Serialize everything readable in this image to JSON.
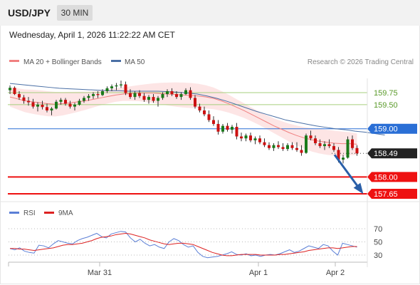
{
  "header": {
    "pair": "USD/JPY",
    "timeframe": "30 MIN"
  },
  "datetime": "Wednesday, April 1, 2026 11:22:22 AM CET",
  "legend": {
    "ma20": "MA 20 + Bollinger Bands",
    "ma50": "MA 50",
    "credit": "Research © 2026 Trading Central"
  },
  "rsi_legend": {
    "rsi": "RSI",
    "ma": "9MA"
  },
  "colors": {
    "up": "#1a7a1a",
    "down": "#cc1111",
    "ma20": "#f08080",
    "ma50": "#4a6fa5",
    "band": "#fde0e0",
    "resistance": "#2a6fd6",
    "support": "#ee1111",
    "green_level": "#a6cf7e",
    "arrow": "#2a5fa8",
    "rsi": "#5b7fd6",
    "rsi_ma": "#dd2222"
  },
  "chart_data": [
    {
      "type": "line",
      "title": "USD/JPY",
      "xlabel": "",
      "ylabel": "",
      "x_ticks": [
        "Mar 31",
        "Apr 1",
        "Apr 2"
      ],
      "ylim": [
        157.5,
        160.1
      ],
      "levels": [
        {
          "value": 159.75,
          "label": "159.75",
          "kind": "target"
        },
        {
          "value": 159.5,
          "label": "159.50",
          "kind": "target"
        },
        {
          "value": 159.0,
          "label": "159.00",
          "kind": "resistance"
        },
        {
          "value": 158.49,
          "label": "158.49",
          "kind": "last"
        },
        {
          "value": 158.0,
          "label": "158.00",
          "kind": "support"
        },
        {
          "value": 157.65,
          "label": "157.65",
          "kind": "support"
        }
      ],
      "candles": [
        [
          159.8,
          159.9,
          159.72,
          159.85
        ],
        [
          159.85,
          159.88,
          159.7,
          159.72
        ],
        [
          159.72,
          159.78,
          159.6,
          159.65
        ],
        [
          159.65,
          159.7,
          159.52,
          159.58
        ],
        [
          159.58,
          159.66,
          159.48,
          159.55
        ],
        [
          159.55,
          159.62,
          159.42,
          159.46
        ],
        [
          159.46,
          159.55,
          159.36,
          159.5
        ],
        [
          159.5,
          159.58,
          159.4,
          159.45
        ],
        [
          159.45,
          159.52,
          159.34,
          159.38
        ],
        [
          159.38,
          159.45,
          159.28,
          159.42
        ],
        [
          159.42,
          159.6,
          159.4,
          159.56
        ],
        [
          159.56,
          159.64,
          159.5,
          159.6
        ],
        [
          159.6,
          159.64,
          159.48,
          159.52
        ],
        [
          159.52,
          159.58,
          159.42,
          159.46
        ],
        [
          159.46,
          159.54,
          159.38,
          159.5
        ],
        [
          159.5,
          159.62,
          159.48,
          159.58
        ],
        [
          159.58,
          159.68,
          159.54,
          159.64
        ],
        [
          159.64,
          159.72,
          159.58,
          159.68
        ],
        [
          159.68,
          159.76,
          159.62,
          159.72
        ],
        [
          159.72,
          159.78,
          159.64,
          159.7
        ],
        [
          159.7,
          159.82,
          159.68,
          159.78
        ],
        [
          159.78,
          159.88,
          159.74,
          159.84
        ],
        [
          159.84,
          159.92,
          159.78,
          159.88
        ],
        [
          159.88,
          159.95,
          159.8,
          159.9
        ],
        [
          159.9,
          160.0,
          159.85,
          159.92
        ],
        [
          159.92,
          159.98,
          159.7,
          159.74
        ],
        [
          159.74,
          159.82,
          159.62,
          159.66
        ],
        [
          159.66,
          159.78,
          159.6,
          159.74
        ],
        [
          159.74,
          159.8,
          159.64,
          159.68
        ],
        [
          159.68,
          159.74,
          159.56,
          159.6
        ],
        [
          159.6,
          159.7,
          159.52,
          159.66
        ],
        [
          159.66,
          159.72,
          159.54,
          159.58
        ],
        [
          159.58,
          159.68,
          159.46,
          159.64
        ],
        [
          159.64,
          159.76,
          159.6,
          159.72
        ],
        [
          159.72,
          159.82,
          159.66,
          159.78
        ],
        [
          159.78,
          159.84,
          159.68,
          159.72
        ],
        [
          159.72,
          159.78,
          159.62,
          159.66
        ],
        [
          159.66,
          159.76,
          159.6,
          159.72
        ],
        [
          159.72,
          159.84,
          159.7,
          159.8
        ],
        [
          159.8,
          159.86,
          159.6,
          159.64
        ],
        [
          159.64,
          159.7,
          159.42,
          159.46
        ],
        [
          159.46,
          159.52,
          159.34,
          159.38
        ],
        [
          159.38,
          159.46,
          159.26,
          159.3
        ],
        [
          159.3,
          159.38,
          159.14,
          159.18
        ],
        [
          159.18,
          159.26,
          159.06,
          159.1
        ],
        [
          159.1,
          159.18,
          158.88,
          158.94
        ],
        [
          158.94,
          159.1,
          158.9,
          159.06
        ],
        [
          159.06,
          159.12,
          158.94,
          158.98
        ],
        [
          158.98,
          159.08,
          158.9,
          159.04
        ],
        [
          159.04,
          159.12,
          158.78,
          158.84
        ],
        [
          158.84,
          158.92,
          158.74,
          158.8
        ],
        [
          158.8,
          158.9,
          158.74,
          158.86
        ],
        [
          158.86,
          158.92,
          158.72,
          158.76
        ],
        [
          158.76,
          158.84,
          158.68,
          158.8
        ],
        [
          158.8,
          158.86,
          158.68,
          158.72
        ],
        [
          158.72,
          158.8,
          158.62,
          158.66
        ],
        [
          158.66,
          158.72,
          158.56,
          158.6
        ],
        [
          158.6,
          158.7,
          158.54,
          158.66
        ],
        [
          158.66,
          158.74,
          158.58,
          158.62
        ],
        [
          158.62,
          158.7,
          158.54,
          158.58
        ],
        [
          158.58,
          158.7,
          158.54,
          158.66
        ],
        [
          158.66,
          158.72,
          158.56,
          158.6
        ],
        [
          158.6,
          158.72,
          158.52,
          158.56
        ],
        [
          158.56,
          158.66,
          158.44,
          158.5
        ],
        [
          158.5,
          158.9,
          158.48,
          158.86
        ],
        [
          158.86,
          158.96,
          158.76,
          158.8
        ],
        [
          158.8,
          158.86,
          158.66,
          158.7
        ],
        [
          158.7,
          158.78,
          158.6,
          158.64
        ],
        [
          158.64,
          158.74,
          158.56,
          158.68
        ],
        [
          158.68,
          158.78,
          158.6,
          158.64
        ],
        [
          158.64,
          158.7,
          158.52,
          158.56
        ],
        [
          158.56,
          158.62,
          158.3,
          158.36
        ],
        [
          158.36,
          158.46,
          158.28,
          158.4
        ],
        [
          158.4,
          158.84,
          158.38,
          158.78
        ],
        [
          158.78,
          158.86,
          158.56,
          158.6
        ],
        [
          158.6,
          158.66,
          158.44,
          158.49
        ]
      ],
      "ma20": [
        159.66,
        159.62,
        159.58,
        159.56,
        159.54,
        159.52,
        159.51,
        159.52,
        159.54,
        159.56,
        159.58,
        159.61,
        159.64,
        159.67,
        159.7,
        159.72,
        159.73,
        159.74,
        159.74,
        159.74,
        159.73,
        159.72,
        159.71,
        159.7,
        159.69,
        159.68,
        159.66,
        159.63,
        159.58,
        159.52,
        159.45,
        159.38,
        159.3,
        159.22,
        159.14,
        159.06,
        158.99,
        158.92,
        158.86,
        158.81,
        158.77,
        158.74,
        158.72,
        158.7,
        158.69,
        158.69,
        158.68
      ],
      "ma20_step": 0.65,
      "band_half_width": 0.2,
      "ma50": [
        159.94,
        159.92,
        159.9,
        159.88,
        159.86,
        159.84,
        159.83,
        159.82,
        159.81,
        159.8,
        159.79,
        159.79,
        159.78,
        159.78,
        159.78,
        159.78,
        159.77,
        159.76,
        159.74,
        159.72,
        159.68,
        159.63,
        159.57,
        159.5,
        159.43,
        159.36,
        159.3,
        159.24,
        159.18,
        159.14,
        159.1,
        159.06,
        159.03,
        159.0,
        158.98,
        158.95,
        158.93,
        158.9,
        158.87
      ],
      "forecast": {
        "from": 158.49,
        "to": 157.65
      }
    },
    {
      "type": "line",
      "title": "RSI",
      "ylim": [
        20,
        80
      ],
      "y_ticks": [
        "70",
        "50",
        "30"
      ],
      "series": [
        {
          "name": "RSI",
          "values": [
            40,
            38,
            41,
            36,
            34,
            33,
            45,
            44,
            41,
            47,
            52,
            50,
            48,
            47,
            52,
            55,
            57,
            60,
            63,
            58,
            56,
            62,
            64,
            66,
            65,
            56,
            50,
            54,
            48,
            44,
            46,
            42,
            40,
            50,
            55,
            52,
            46,
            42,
            44,
            34,
            28,
            26,
            27,
            28,
            30,
            32,
            35,
            31,
            30,
            32,
            29,
            30,
            28,
            30,
            31,
            30,
            32,
            35,
            38,
            34,
            36,
            40,
            44,
            42,
            40,
            46,
            44,
            36,
            30,
            48,
            46,
            44,
            42
          ]
        },
        {
          "name": "9MA",
          "values": [
            40,
            40,
            39,
            39,
            38,
            37,
            38,
            39,
            40,
            41,
            43,
            45,
            46,
            46,
            47,
            48,
            50,
            52,
            55,
            57,
            58,
            59,
            61,
            62,
            63,
            62,
            60,
            58,
            56,
            53,
            51,
            49,
            47,
            46,
            47,
            48,
            48,
            47,
            46,
            43,
            40,
            37,
            34,
            32,
            30,
            29,
            29,
            30,
            31,
            31,
            31,
            31,
            30,
            30,
            30,
            30,
            31,
            31,
            32,
            33,
            34,
            35,
            37,
            38,
            39,
            40,
            41,
            41,
            40,
            41,
            42,
            43,
            43
          ]
        }
      ]
    }
  ]
}
